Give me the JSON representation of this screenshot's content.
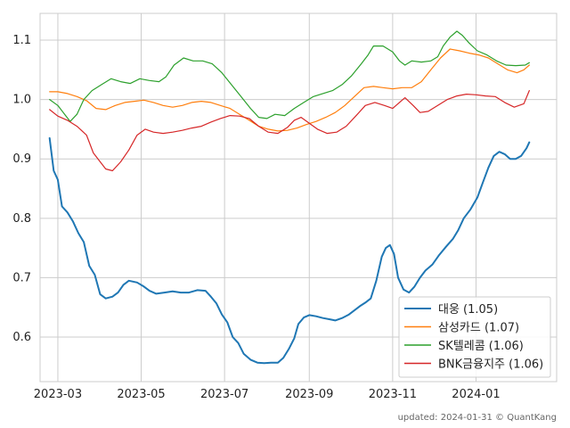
{
  "chart_data": {
    "type": "line",
    "x_tick_labels": [
      "2023-03",
      "2023-05",
      "2023-07",
      "2023-09",
      "2023-11",
      "2024-01"
    ],
    "x_range": [
      "2023-02-16",
      "2024-02-29"
    ],
    "y_ticks": [
      0.6,
      0.7,
      0.8,
      0.9,
      1.0,
      1.1
    ],
    "y_tick_labels": [
      "0.6",
      "0.7",
      "0.8",
      "0.9",
      "1.0",
      "1.1"
    ],
    "ylim": [
      0.525,
      1.145
    ],
    "grid": true,
    "legend_position": "bottom-right",
    "series": [
      {
        "name": "대웅 (1.05)",
        "color": "#1f77b4",
        "points": [
          [
            "2023-02-23",
            0.935
          ],
          [
            "2023-02-26",
            0.88
          ],
          [
            "2023-03-01",
            0.865
          ],
          [
            "2023-03-04",
            0.82
          ],
          [
            "2023-03-08",
            0.81
          ],
          [
            "2023-03-12",
            0.795
          ],
          [
            "2023-03-16",
            0.775
          ],
          [
            "2023-03-20",
            0.76
          ],
          [
            "2023-03-24",
            0.72
          ],
          [
            "2023-03-28",
            0.705
          ],
          [
            "2023-04-01",
            0.672
          ],
          [
            "2023-04-05",
            0.665
          ],
          [
            "2023-04-10",
            0.668
          ],
          [
            "2023-04-14",
            0.675
          ],
          [
            "2023-04-18",
            0.688
          ],
          [
            "2023-04-22",
            0.695
          ],
          [
            "2023-04-28",
            0.692
          ],
          [
            "2023-05-03",
            0.685
          ],
          [
            "2023-05-07",
            0.678
          ],
          [
            "2023-05-12",
            0.673
          ],
          [
            "2023-05-18",
            0.675
          ],
          [
            "2023-05-24",
            0.677
          ],
          [
            "2023-05-30",
            0.675
          ],
          [
            "2023-06-05",
            0.675
          ],
          [
            "2023-06-11",
            0.679
          ],
          [
            "2023-06-17",
            0.678
          ],
          [
            "2023-06-21",
            0.668
          ],
          [
            "2023-06-25",
            0.657
          ],
          [
            "2023-06-29",
            0.638
          ],
          [
            "2023-07-03",
            0.625
          ],
          [
            "2023-07-07",
            0.6
          ],
          [
            "2023-07-11",
            0.59
          ],
          [
            "2023-07-15",
            0.572
          ],
          [
            "2023-07-20",
            0.562
          ],
          [
            "2023-07-25",
            0.557
          ],
          [
            "2023-07-30",
            0.556
          ],
          [
            "2023-08-04",
            0.557
          ],
          [
            "2023-08-09",
            0.557
          ],
          [
            "2023-08-13",
            0.565
          ],
          [
            "2023-08-17",
            0.58
          ],
          [
            "2023-08-21",
            0.598
          ],
          [
            "2023-08-24",
            0.622
          ],
          [
            "2023-08-28",
            0.633
          ],
          [
            "2023-09-01",
            0.637
          ],
          [
            "2023-09-06",
            0.635
          ],
          [
            "2023-09-11",
            0.632
          ],
          [
            "2023-09-16",
            0.63
          ],
          [
            "2023-09-20",
            0.628
          ],
          [
            "2023-09-25",
            0.632
          ],
          [
            "2023-09-30",
            0.638
          ],
          [
            "2023-10-04",
            0.645
          ],
          [
            "2023-10-08",
            0.652
          ],
          [
            "2023-10-12",
            0.658
          ],
          [
            "2023-10-16",
            0.665
          ],
          [
            "2023-10-20",
            0.695
          ],
          [
            "2023-10-24",
            0.735
          ],
          [
            "2023-10-27",
            0.75
          ],
          [
            "2023-10-30",
            0.755
          ],
          [
            "2023-11-02",
            0.74
          ],
          [
            "2023-11-05",
            0.7
          ],
          [
            "2023-11-09",
            0.68
          ],
          [
            "2023-11-13",
            0.675
          ],
          [
            "2023-11-17",
            0.685
          ],
          [
            "2023-11-21",
            0.7
          ],
          [
            "2023-11-25",
            0.712
          ],
          [
            "2023-11-30",
            0.722
          ],
          [
            "2023-12-05",
            0.738
          ],
          [
            "2023-12-10",
            0.752
          ],
          [
            "2023-12-15",
            0.765
          ],
          [
            "2023-12-19",
            0.78
          ],
          [
            "2023-12-23",
            0.8
          ],
          [
            "2023-12-28",
            0.815
          ],
          [
            "2024-01-02",
            0.835
          ],
          [
            "2024-01-06",
            0.86
          ],
          [
            "2024-01-10",
            0.885
          ],
          [
            "2024-01-14",
            0.905
          ],
          [
            "2024-01-18",
            0.912
          ],
          [
            "2024-01-22",
            0.908
          ],
          [
            "2024-01-26",
            0.9
          ],
          [
            "2024-01-30",
            0.9
          ],
          [
            "2024-02-03",
            0.905
          ],
          [
            "2024-02-07",
            0.918
          ],
          [
            "2024-02-09",
            0.928
          ]
        ]
      },
      {
        "name": "삼성카드 (1.07)",
        "color": "#ff7f0e",
        "points": [
          [
            "2023-02-23",
            1.013
          ],
          [
            "2023-03-01",
            1.013
          ],
          [
            "2023-03-08",
            1.01
          ],
          [
            "2023-03-15",
            1.005
          ],
          [
            "2023-03-22",
            0.998
          ],
          [
            "2023-03-29",
            0.985
          ],
          [
            "2023-04-05",
            0.983
          ],
          [
            "2023-04-12",
            0.99
          ],
          [
            "2023-04-19",
            0.995
          ],
          [
            "2023-04-26",
            0.997
          ],
          [
            "2023-05-03",
            0.999
          ],
          [
            "2023-05-10",
            0.995
          ],
          [
            "2023-05-17",
            0.99
          ],
          [
            "2023-05-24",
            0.987
          ],
          [
            "2023-05-31",
            0.99
          ],
          [
            "2023-06-07",
            0.995
          ],
          [
            "2023-06-14",
            0.997
          ],
          [
            "2023-06-21",
            0.995
          ],
          [
            "2023-06-28",
            0.99
          ],
          [
            "2023-07-05",
            0.985
          ],
          [
            "2023-07-12",
            0.975
          ],
          [
            "2023-07-19",
            0.965
          ],
          [
            "2023-07-26",
            0.955
          ],
          [
            "2023-08-02",
            0.95
          ],
          [
            "2023-08-09",
            0.947
          ],
          [
            "2023-08-16",
            0.948
          ],
          [
            "2023-08-23",
            0.952
          ],
          [
            "2023-08-30",
            0.958
          ],
          [
            "2023-09-06",
            0.963
          ],
          [
            "2023-09-13",
            0.97
          ],
          [
            "2023-09-20",
            0.978
          ],
          [
            "2023-09-27",
            0.99
          ],
          [
            "2023-10-04",
            1.005
          ],
          [
            "2023-10-11",
            1.02
          ],
          [
            "2023-10-18",
            1.022
          ],
          [
            "2023-10-25",
            1.02
          ],
          [
            "2023-11-01",
            1.018
          ],
          [
            "2023-11-08",
            1.02
          ],
          [
            "2023-11-15",
            1.02
          ],
          [
            "2023-11-22",
            1.03
          ],
          [
            "2023-11-29",
            1.05
          ],
          [
            "2023-12-06",
            1.07
          ],
          [
            "2023-12-13",
            1.085
          ],
          [
            "2023-12-20",
            1.082
          ],
          [
            "2023-12-27",
            1.078
          ],
          [
            "2024-01-03",
            1.075
          ],
          [
            "2024-01-10",
            1.07
          ],
          [
            "2024-01-17",
            1.06
          ],
          [
            "2024-01-24",
            1.05
          ],
          [
            "2024-01-31",
            1.045
          ],
          [
            "2024-02-05",
            1.05
          ],
          [
            "2024-02-09",
            1.058
          ]
        ]
      },
      {
        "name": "SK텔레콤 (1.06)",
        "color": "#2ca02c",
        "points": [
          [
            "2023-02-23",
            1.0
          ],
          [
            "2023-03-01",
            0.99
          ],
          [
            "2023-03-06",
            0.975
          ],
          [
            "2023-03-10",
            0.963
          ],
          [
            "2023-03-15",
            0.975
          ],
          [
            "2023-03-20",
            1.0
          ],
          [
            "2023-03-26",
            1.015
          ],
          [
            "2023-04-02",
            1.025
          ],
          [
            "2023-04-09",
            1.035
          ],
          [
            "2023-04-16",
            1.03
          ],
          [
            "2023-04-23",
            1.027
          ],
          [
            "2023-04-30",
            1.035
          ],
          [
            "2023-05-07",
            1.032
          ],
          [
            "2023-05-14",
            1.03
          ],
          [
            "2023-05-19",
            1.038
          ],
          [
            "2023-05-25",
            1.058
          ],
          [
            "2023-06-01",
            1.07
          ],
          [
            "2023-06-08",
            1.065
          ],
          [
            "2023-06-15",
            1.065
          ],
          [
            "2023-06-22",
            1.06
          ],
          [
            "2023-06-29",
            1.045
          ],
          [
            "2023-07-06",
            1.025
          ],
          [
            "2023-07-13",
            1.005
          ],
          [
            "2023-07-20",
            0.985
          ],
          [
            "2023-07-26",
            0.97
          ],
          [
            "2023-08-01",
            0.968
          ],
          [
            "2023-08-07",
            0.975
          ],
          [
            "2023-08-14",
            0.973
          ],
          [
            "2023-08-21",
            0.985
          ],
          [
            "2023-08-28",
            0.995
          ],
          [
            "2023-09-04",
            1.005
          ],
          [
            "2023-09-11",
            1.01
          ],
          [
            "2023-09-18",
            1.015
          ],
          [
            "2023-09-25",
            1.025
          ],
          [
            "2023-10-02",
            1.04
          ],
          [
            "2023-10-09",
            1.06
          ],
          [
            "2023-10-14",
            1.075
          ],
          [
            "2023-10-18",
            1.09
          ],
          [
            "2023-10-25",
            1.09
          ],
          [
            "2023-11-01",
            1.08
          ],
          [
            "2023-11-06",
            1.065
          ],
          [
            "2023-11-10",
            1.058
          ],
          [
            "2023-11-15",
            1.065
          ],
          [
            "2023-11-22",
            1.063
          ],
          [
            "2023-11-29",
            1.065
          ],
          [
            "2023-12-04",
            1.072
          ],
          [
            "2023-12-08",
            1.09
          ],
          [
            "2023-12-13",
            1.105
          ],
          [
            "2023-12-18",
            1.115
          ],
          [
            "2023-12-22",
            1.108
          ],
          [
            "2023-12-27",
            1.095
          ],
          [
            "2024-01-02",
            1.082
          ],
          [
            "2024-01-09",
            1.075
          ],
          [
            "2024-01-16",
            1.065
          ],
          [
            "2024-01-23",
            1.058
          ],
          [
            "2024-01-30",
            1.057
          ],
          [
            "2024-02-06",
            1.058
          ],
          [
            "2024-02-09",
            1.062
          ]
        ]
      },
      {
        "name": "BNK금융지주 (1.06)",
        "color": "#d62728",
        "points": [
          [
            "2023-02-23",
            0.983
          ],
          [
            "2023-03-01",
            0.972
          ],
          [
            "2023-03-08",
            0.965
          ],
          [
            "2023-03-15",
            0.955
          ],
          [
            "2023-03-22",
            0.94
          ],
          [
            "2023-03-27",
            0.91
          ],
          [
            "2023-04-01",
            0.895
          ],
          [
            "2023-04-05",
            0.883
          ],
          [
            "2023-04-10",
            0.88
          ],
          [
            "2023-04-16",
            0.895
          ],
          [
            "2023-04-22",
            0.915
          ],
          [
            "2023-04-28",
            0.94
          ],
          [
            "2023-05-04",
            0.95
          ],
          [
            "2023-05-10",
            0.945
          ],
          [
            "2023-05-17",
            0.943
          ],
          [
            "2023-05-24",
            0.945
          ],
          [
            "2023-05-31",
            0.948
          ],
          [
            "2023-06-07",
            0.952
          ],
          [
            "2023-06-14",
            0.955
          ],
          [
            "2023-06-21",
            0.962
          ],
          [
            "2023-06-28",
            0.968
          ],
          [
            "2023-07-05",
            0.973
          ],
          [
            "2023-07-12",
            0.972
          ],
          [
            "2023-07-19",
            0.968
          ],
          [
            "2023-07-26",
            0.955
          ],
          [
            "2023-08-02",
            0.945
          ],
          [
            "2023-08-09",
            0.943
          ],
          [
            "2023-08-16",
            0.953
          ],
          [
            "2023-08-21",
            0.965
          ],
          [
            "2023-08-26",
            0.97
          ],
          [
            "2023-09-01",
            0.96
          ],
          [
            "2023-09-07",
            0.95
          ],
          [
            "2023-09-14",
            0.943
          ],
          [
            "2023-09-21",
            0.945
          ],
          [
            "2023-09-28",
            0.955
          ],
          [
            "2023-10-05",
            0.972
          ],
          [
            "2023-10-12",
            0.99
          ],
          [
            "2023-10-19",
            0.995
          ],
          [
            "2023-10-26",
            0.99
          ],
          [
            "2023-11-01",
            0.985
          ],
          [
            "2023-11-06",
            0.995
          ],
          [
            "2023-11-10",
            1.003
          ],
          [
            "2023-11-16",
            0.99
          ],
          [
            "2023-11-21",
            0.978
          ],
          [
            "2023-11-27",
            0.98
          ],
          [
            "2023-12-04",
            0.99
          ],
          [
            "2023-12-11",
            1.0
          ],
          [
            "2023-12-18",
            1.006
          ],
          [
            "2023-12-25",
            1.009
          ],
          [
            "2024-01-01",
            1.008
          ],
          [
            "2024-01-08",
            1.006
          ],
          [
            "2024-01-15",
            1.005
          ],
          [
            "2024-01-22",
            0.995
          ],
          [
            "2024-01-29",
            0.987
          ],
          [
            "2024-02-05",
            0.993
          ],
          [
            "2024-02-09",
            1.015
          ]
        ]
      }
    ]
  },
  "footer": {
    "note": "updated: 2024-01-31 © QuantKang"
  }
}
